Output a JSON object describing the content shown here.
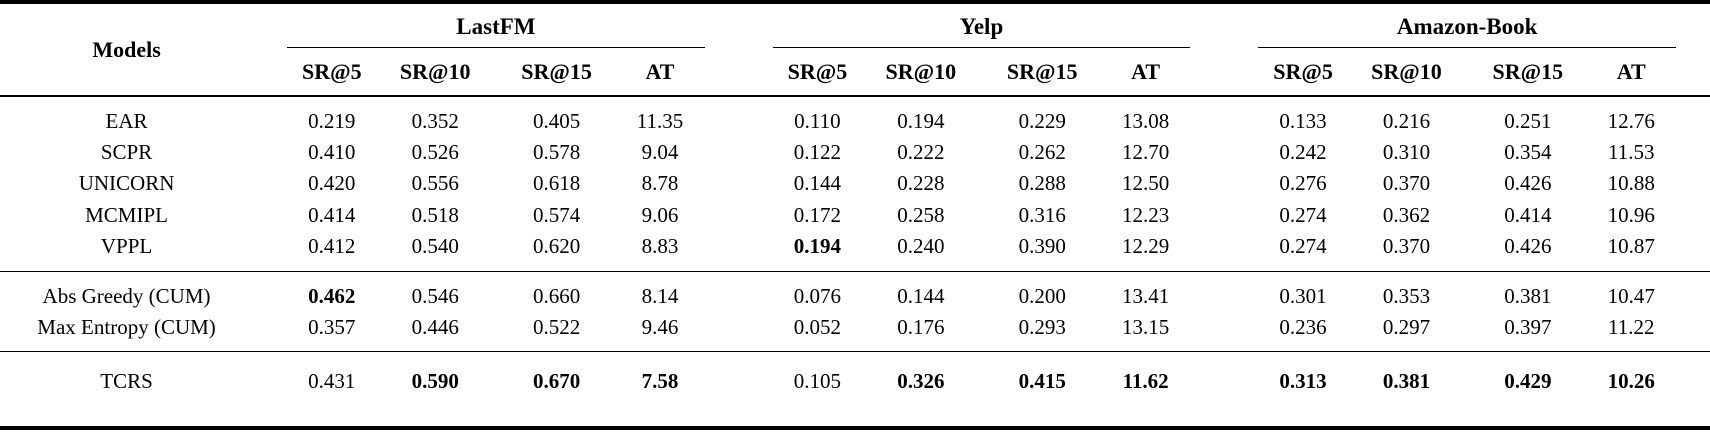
{
  "table": {
    "models_header": "Models",
    "groups": [
      {
        "label": "LastFM"
      },
      {
        "label": "Yelp"
      },
      {
        "label": "Amazon-Book"
      }
    ],
    "metric_headers": [
      "SR@5",
      "SR@10",
      "SR@15",
      "AT"
    ],
    "sections": [
      {
        "rows": [
          {
            "model": "EAR",
            "bold_model": false,
            "values": [
              "0.219",
              "0.352",
              "0.405",
              "11.35",
              "0.110",
              "0.194",
              "0.229",
              "13.08",
              "0.133",
              "0.216",
              "0.251",
              "12.76"
            ],
            "bold": [
              false,
              false,
              false,
              false,
              false,
              false,
              false,
              false,
              false,
              false,
              false,
              false
            ]
          },
          {
            "model": "SCPR",
            "bold_model": false,
            "values": [
              "0.410",
              "0.526",
              "0.578",
              "9.04",
              "0.122",
              "0.222",
              "0.262",
              "12.70",
              "0.242",
              "0.310",
              "0.354",
              "11.53"
            ],
            "bold": [
              false,
              false,
              false,
              false,
              false,
              false,
              false,
              false,
              false,
              false,
              false,
              false
            ]
          },
          {
            "model": "UNICORN",
            "bold_model": false,
            "values": [
              "0.420",
              "0.556",
              "0.618",
              "8.78",
              "0.144",
              "0.228",
              "0.288",
              "12.50",
              "0.276",
              "0.370",
              "0.426",
              "10.88"
            ],
            "bold": [
              false,
              false,
              false,
              false,
              false,
              false,
              false,
              false,
              false,
              false,
              false,
              false
            ]
          },
          {
            "model": "MCMIPL",
            "bold_model": false,
            "values": [
              "0.414",
              "0.518",
              "0.574",
              "9.06",
              "0.172",
              "0.258",
              "0.316",
              "12.23",
              "0.274",
              "0.362",
              "0.414",
              "10.96"
            ],
            "bold": [
              false,
              false,
              false,
              false,
              false,
              false,
              false,
              false,
              false,
              false,
              false,
              false
            ]
          },
          {
            "model": "VPPL",
            "bold_model": false,
            "values": [
              "0.412",
              "0.540",
              "0.620",
              "8.83",
              "0.194",
              "0.240",
              "0.390",
              "12.29",
              "0.274",
              "0.370",
              "0.426",
              "10.87"
            ],
            "bold": [
              false,
              false,
              false,
              false,
              true,
              false,
              false,
              false,
              false,
              false,
              false,
              false
            ]
          }
        ]
      },
      {
        "rows": [
          {
            "model": "Abs Greedy (CUM)",
            "bold_model": false,
            "values": [
              "0.462",
              "0.546",
              "0.660",
              "8.14",
              "0.076",
              "0.144",
              "0.200",
              "13.41",
              "0.301",
              "0.353",
              "0.381",
              "10.47"
            ],
            "bold": [
              true,
              false,
              false,
              false,
              false,
              false,
              false,
              false,
              false,
              false,
              false,
              false
            ]
          },
          {
            "model": "Max Entropy (CUM)",
            "bold_model": false,
            "values": [
              "0.357",
              "0.446",
              "0.522",
              "9.46",
              "0.052",
              "0.176",
              "0.293",
              "13.15",
              "0.236",
              "0.297",
              "0.397",
              "11.22"
            ],
            "bold": [
              false,
              false,
              false,
              false,
              false,
              false,
              false,
              false,
              false,
              false,
              false,
              false
            ]
          }
        ]
      },
      {
        "rows": [
          {
            "model": "TCRS",
            "bold_model": true,
            "values": [
              "0.431",
              "0.590",
              "0.670",
              "7.58",
              "0.105",
              "0.326",
              "0.415",
              "11.62",
              "0.313",
              "0.381",
              "0.429",
              "10.26"
            ],
            "bold": [
              false,
              true,
              true,
              true,
              false,
              true,
              true,
              true,
              true,
              true,
              true,
              true
            ]
          }
        ]
      }
    ]
  }
}
